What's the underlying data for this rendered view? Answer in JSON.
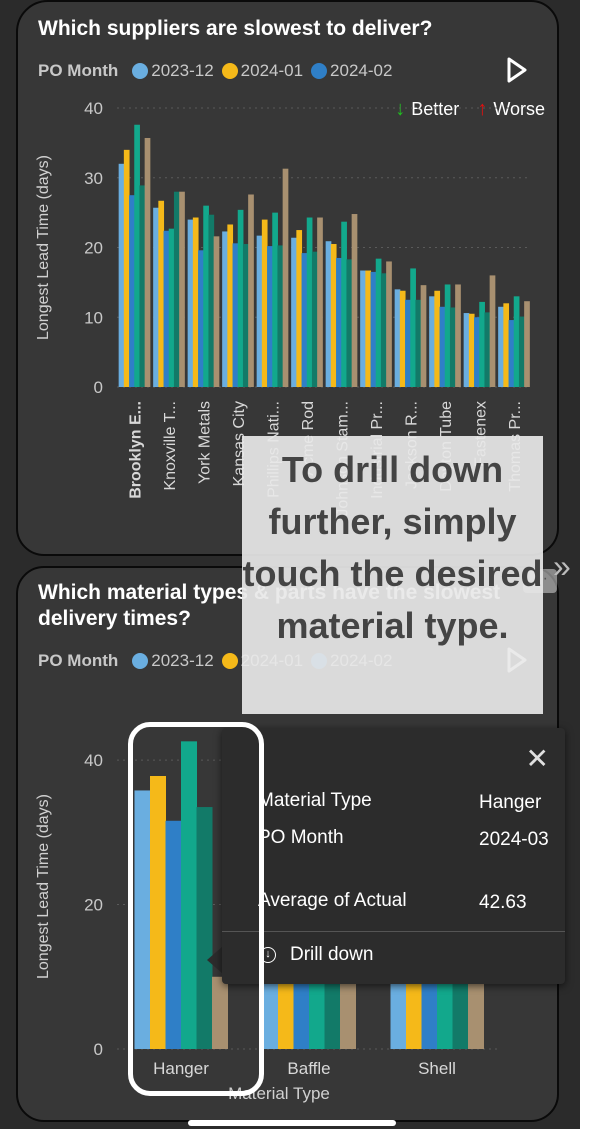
{
  "colors": {
    "series_2023_12": "#6aaee0",
    "series_2024_01": "#f5b919",
    "series_2024_02": "#2f7fc7",
    "series_teal": "#12a88c",
    "series_dark_teal": "#127a68",
    "series_tan": "#a89070",
    "better": "#20c020",
    "worse": "#e01010"
  },
  "card1": {
    "title": "Which suppliers are slowest to deliver?",
    "legend_label": "PO Month",
    "legend": [
      "2023-12",
      "2024-01",
      "2024-02"
    ],
    "better_label": "Better",
    "worse_label": "Worse",
    "play_icon": "play-outline-icon"
  },
  "card2": {
    "title": "Which material types & parts have the slowest delivery times?",
    "legend_label": "PO Month",
    "legend": [
      "2023-12",
      "2024-01",
      "2024-02"
    ],
    "play_icon": "play-outline-icon"
  },
  "hint": {
    "text": "To drill down further, simply touch the desired material type."
  },
  "tooltip": {
    "close_icon": "close-icon",
    "rows": [
      {
        "key": "Material Type",
        "value": "Hanger"
      },
      {
        "key": "PO Month",
        "value": "2024-03"
      },
      {
        "key": "Average of Actual Delivery",
        "value": "42.63"
      }
    ],
    "drill_icon": "drill-down-icon",
    "drill_label": "Drill down"
  },
  "chart_data": [
    {
      "type": "bar",
      "ylabel": "Longest Lead Time (days)",
      "xlabel": "",
      "ylim": [
        0,
        40
      ],
      "yticks": [
        0,
        10,
        20,
        30,
        40
      ],
      "grid": true,
      "categories": [
        "Brooklyn E...",
        "Knoxville T...",
        "York Metals",
        "Kansas City",
        "Phillips Nati...",
        "Acme Rod",
        "Johnson Stam...",
        "Industrial Pr...",
        "Jackson R...",
        "Dayton Tube",
        "Fastenex",
        "Thomas Pr..."
      ],
      "bold_category": "Brooklyn E...",
      "series": [
        {
          "name": "2023-12",
          "values": [
            32,
            25.7,
            24,
            22.3,
            21.7,
            21.4,
            20.9,
            16.7,
            14,
            13,
            10.6,
            11.5
          ]
        },
        {
          "name": "2024-01",
          "values": [
            34,
            26.7,
            24.3,
            23.3,
            24,
            22.5,
            20.5,
            16.7,
            13.8,
            13.8,
            10.5,
            12
          ]
        },
        {
          "name": "2024-02",
          "values": [
            27.5,
            22.4,
            19.6,
            20.6,
            20.2,
            19.2,
            18.5,
            16.5,
            12.5,
            11.5,
            10,
            9.6
          ]
        },
        {
          "name": "",
          "values": [
            37.6,
            22.7,
            26,
            25.4,
            25,
            24.3,
            23.7,
            18.4,
            17,
            14.7,
            12.2,
            13
          ]
        },
        {
          "name": "",
          "values": [
            28.9,
            28,
            24.7,
            20.5,
            20.3,
            19.4,
            18.3,
            16.3,
            12.5,
            11.4,
            10.7,
            10.1
          ]
        },
        {
          "name": "",
          "values": [
            35.7,
            28,
            21.6,
            27.6,
            31.3,
            24.3,
            24.8,
            18,
            14.6,
            14.7,
            16,
            12.3
          ]
        }
      ]
    },
    {
      "type": "bar",
      "ylabel": "Longest Lead Time (days)",
      "xlabel": "Material Type",
      "ylim": [
        0,
        45
      ],
      "yticks": [
        0,
        20,
        40
      ],
      "grid": true,
      "categories": [
        "Hanger",
        "Baffle",
        "Shell"
      ],
      "series": [
        {
          "name": "2023-12",
          "values": [
            35.8,
            10,
            10
          ]
        },
        {
          "name": "2024-01",
          "values": [
            37.8,
            10,
            10
          ]
        },
        {
          "name": "2024-02",
          "values": [
            31.6,
            10,
            10
          ]
        },
        {
          "name": "",
          "values": [
            42.6,
            10,
            10
          ]
        },
        {
          "name": "",
          "values": [
            33.5,
            10,
            10
          ]
        },
        {
          "name": "",
          "values": [
            10,
            10,
            10
          ]
        }
      ]
    }
  ]
}
